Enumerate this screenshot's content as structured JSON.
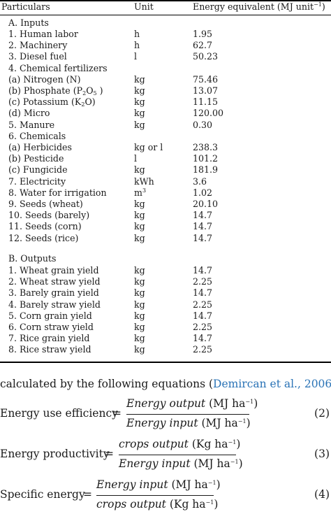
{
  "table": {
    "headers": [
      "Particulars",
      "Unit",
      "Energy equivalent (MJ unit",
      "−1",
      ")"
    ],
    "section_inputs": "A. Inputs",
    "section_outputs": "B. Outputs",
    "inputs": [
      {
        "name": "1. Human labor",
        "unit": "h",
        "value": "1.95"
      },
      {
        "name": "2. Machinery",
        "unit": "h",
        "value": "62.7"
      },
      {
        "name": "3. Diesel fuel",
        "unit": "l",
        "value": "50.23"
      },
      {
        "name": "4. Chemical fertilizers",
        "unit": "",
        "value": ""
      },
      {
        "name": "(a) Nitrogen (N)",
        "unit": "kg",
        "value": "75.46"
      },
      {
        "name_parts": [
          "(b) Phosphate (P",
          "2",
          "O",
          "5",
          " )"
        ],
        "unit": "kg",
        "value": "13.07"
      },
      {
        "name_parts": [
          "(c) Potassium (K",
          "2",
          "O)"
        ],
        "unit": "kg",
        "value": "11.15"
      },
      {
        "name": "(d) Micro",
        "unit": "kg",
        "value": "120.00"
      },
      {
        "name": "5. Manure",
        "unit": "kg",
        "value": "0.30"
      },
      {
        "name": "6. Chemicals",
        "unit": "",
        "value": ""
      },
      {
        "name": "(a) Herbicides",
        "unit": "kg or l",
        "value": "238.3"
      },
      {
        "name": "(b) Pesticide",
        "unit": "l",
        "value": "101.2"
      },
      {
        "name": "(c) Fungicide",
        "unit": "kg",
        "value": "181.9"
      },
      {
        "name": "7. Electricity",
        "unit": "kWh",
        "value": "3.6"
      },
      {
        "name": "8. Water for irrigation",
        "unit_parts": [
          "m",
          "3"
        ],
        "value": "1.02"
      },
      {
        "name": "9. Seeds (wheat)",
        "unit": "kg",
        "value": "20.10"
      },
      {
        "name": "10. Seeds (barely)",
        "unit": "kg",
        "value": "14.7"
      },
      {
        "name": "11. Seeds (corn)",
        "unit": "kg",
        "value": "14.7"
      },
      {
        "name": "12. Seeds (rice)",
        "unit": "kg",
        "value": "14.7"
      }
    ],
    "outputs": [
      {
        "name": "1. Wheat grain yield",
        "unit": "kg",
        "value": "14.7"
      },
      {
        "name": "2. Wheat straw yield",
        "unit": "kg",
        "value": "2.25"
      },
      {
        "name": "3. Barely grain yield",
        "unit": "kg",
        "value": "14.7"
      },
      {
        "name": "4. Barely straw yield",
        "unit": "kg",
        "value": "2.25"
      },
      {
        "name": "5. Corn grain yield",
        "unit": "kg",
        "value": "14.7"
      },
      {
        "name": "6. Corn straw yield",
        "unit": "kg",
        "value": "2.25"
      },
      {
        "name": "7. Rice grain yield",
        "unit": "kg",
        "value": "14.7"
      },
      {
        "name": "8. Rice straw yield",
        "unit": "kg",
        "value": "2.25"
      }
    ]
  },
  "intro": {
    "before": "calculated by the following equations (",
    "citation": "Demircan et al., 2006",
    "after": "):"
  },
  "equations": [
    {
      "lhs": "Energy use efficiency",
      "num_italic": "Energy output",
      "num_unit": " (MJ ha",
      "num_exp": "−1",
      "den_italic": "Energy input",
      "den_unit": " (MJ ha",
      "den_exp": "−1",
      "number": "(2)"
    },
    {
      "lhs": "Energy productivity",
      "num_italic": "crops output",
      "num_unit": " (Kg ha",
      "num_exp": "−1",
      "den_italic": "Energy input",
      "den_unit": " (MJ ha",
      "den_exp": "−1",
      "number": "(3)"
    },
    {
      "lhs": "Specific energy",
      "num_italic": "Energy input",
      "num_unit": " (MJ ha",
      "num_exp": "−1",
      "den_italic": "crops output",
      "den_unit": " (Kg ha",
      "den_exp": "−1",
      "number": "(4)"
    }
  ],
  "symbols": {
    "equals": "=",
    "close_paren": ")"
  }
}
